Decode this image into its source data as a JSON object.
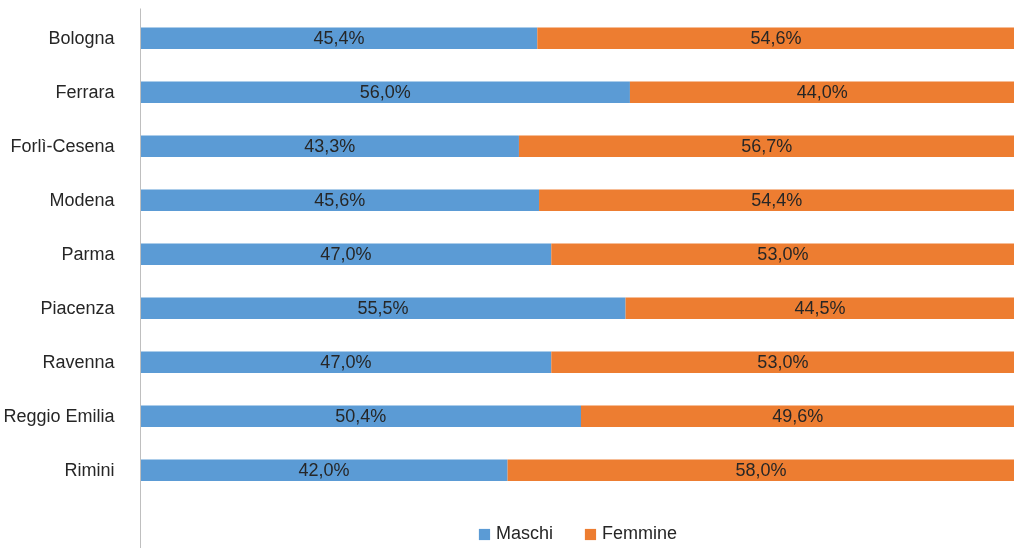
{
  "chart_data": {
    "type": "bar",
    "orientation": "horizontal",
    "stacked": true,
    "categories": [
      "Bologna",
      "Ferrara",
      "Forlì-Cesena",
      "Modena",
      "Parma",
      "Piacenza",
      "Ravenna",
      "Reggio Emilia",
      "Rimini"
    ],
    "series": [
      {
        "name": "Maschi",
        "color": "#5b9bd5",
        "values": [
          45.4,
          56.0,
          43.3,
          45.6,
          47.0,
          55.5,
          47.0,
          50.4,
          42.0
        ],
        "value_labels": [
          "45,4%",
          "56,0%",
          "43,3%",
          "45,6%",
          "47,0%",
          "55,5%",
          "47,0%",
          "50,4%",
          "42,0%"
        ]
      },
      {
        "name": "Femmine",
        "color": "#ed7d31",
        "values": [
          54.6,
          44.0,
          56.7,
          54.4,
          53.0,
          44.5,
          53.0,
          49.6,
          58.0
        ],
        "value_labels": [
          "54,6%",
          "44,0%",
          "56,7%",
          "54,4%",
          "53,0%",
          "44,5%",
          "53,0%",
          "49,6%",
          "58,0%"
        ]
      }
    ],
    "tick_labels": "y",
    "grid": false,
    "legend": "bottom"
  }
}
